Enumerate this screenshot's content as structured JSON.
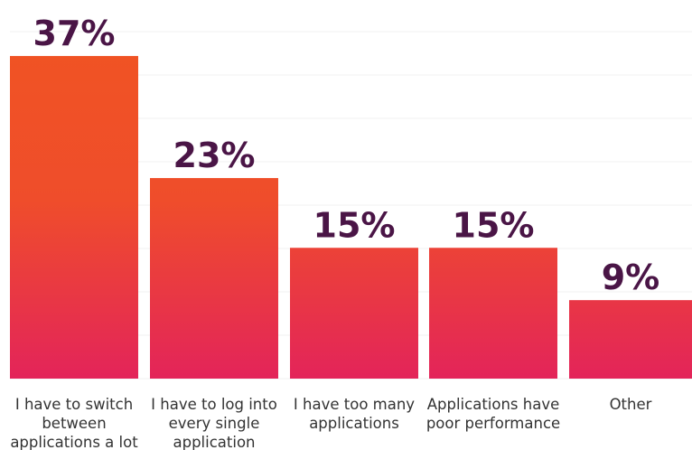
{
  "chart_data": {
    "type": "bar",
    "categories": [
      "I have to switch between applications a lot",
      "I have to log into every single application",
      "I have too many applications",
      "Applications have poor performance",
      "Other"
    ],
    "values": [
      37,
      23,
      15,
      15,
      9
    ],
    "value_labels": [
      "37%",
      "23%",
      "15%",
      "15%",
      "9%"
    ],
    "title": "",
    "xlabel": "",
    "ylabel": "",
    "ylim": [
      0,
      43
    ],
    "grid": true,
    "colors": {
      "bar_top": "#f05324",
      "bar_bottom": "#e3245a",
      "value_label": "#4a1546",
      "grid": "#f2f2f2",
      "category_label": "#333333"
    }
  }
}
